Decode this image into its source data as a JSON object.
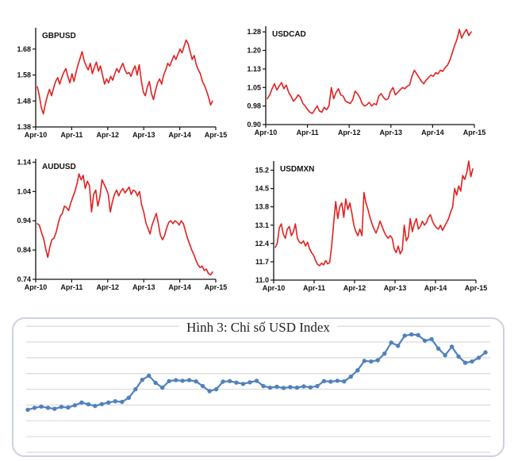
{
  "colors": {
    "line_red": "#e32020",
    "line_blue": "#4f81bd",
    "grid_gray": "#d9d9d9",
    "axis_black": "#111111",
    "box_border": "#ccd3de"
  },
  "chart_data": [
    {
      "id": "gbpusd",
      "type": "line",
      "title": "GBPUSD",
      "x_ticks": [
        "Apr-10",
        "Apr-11",
        "Apr-12",
        "Apr-13",
        "Apr-14",
        "Apr-15"
      ],
      "yticks": [
        1.38,
        1.48,
        1.58,
        1.68
      ],
      "ytick_labels": [
        "1.38",
        "1.48",
        "1.58",
        "1.68"
      ],
      "ylim": [
        1.38,
        1.762
      ],
      "line_color": "#e32020",
      "series": [
        {
          "name": "GBPUSD",
          "values": [
            1.535,
            1.5,
            1.455,
            1.43,
            1.47,
            1.5,
            1.525,
            1.5,
            1.53,
            1.555,
            1.57,
            1.545,
            1.57,
            1.59,
            1.605,
            1.575,
            1.55,
            1.585,
            1.555,
            1.59,
            1.62,
            1.645,
            1.67,
            1.635,
            1.615,
            1.6,
            1.625,
            1.585,
            1.61,
            1.63,
            1.595,
            1.615,
            1.58,
            1.545,
            1.565,
            1.55,
            1.575,
            1.56,
            1.585,
            1.605,
            1.59,
            1.61,
            1.625,
            1.6,
            1.585,
            1.59,
            1.575,
            1.6,
            1.615,
            1.58,
            1.62,
            1.56,
            1.515,
            1.5,
            1.535,
            1.555,
            1.51,
            1.485,
            1.52,
            1.55,
            1.565,
            1.545,
            1.58,
            1.6,
            1.625,
            1.615,
            1.635,
            1.655,
            1.64,
            1.66,
            1.68,
            1.665,
            1.69,
            1.715,
            1.7,
            1.67,
            1.64,
            1.655,
            1.62,
            1.6,
            1.585,
            1.555,
            1.54,
            1.52,
            1.495,
            1.465,
            1.48
          ]
        }
      ]
    },
    {
      "id": "usdcad",
      "type": "line",
      "title": "USDCAD",
      "x_ticks": [
        "Apr-10",
        "Apr-11",
        "Apr-12",
        "Apr-13",
        "Apr-14",
        "Apr-15"
      ],
      "yticks": [
        0.9,
        0.975,
        1.05,
        1.125,
        1.2,
        1.275
      ],
      "ytick_labels": [
        "0.90",
        "0.98",
        "1.05",
        "1.13",
        "1.20",
        "1.28"
      ],
      "ylim": [
        0.9,
        1.298
      ],
      "line_color": "#e32020",
      "series": [
        {
          "name": "USDCAD",
          "values": [
            1.005,
            1.02,
            1.045,
            1.065,
            1.04,
            1.055,
            1.07,
            1.045,
            1.06,
            1.03,
            1.015,
            0.995,
            1.005,
            1.02,
            1.01,
            0.985,
            0.975,
            0.96,
            0.95,
            0.945,
            0.96,
            0.975,
            0.955,
            0.95,
            0.97,
            0.96,
            0.975,
            1.05,
            1.005,
            1.03,
            1.045,
            1.02,
            1.015,
            0.995,
            0.99,
            0.985,
            1.0,
            1.035,
            1.025,
            1.01,
            0.985,
            0.975,
            0.98,
            0.99,
            0.975,
            0.985,
            0.98,
            1.015,
            1.025,
            1.01,
            1.0,
            1.005,
            1.035,
            1.05,
            1.02,
            1.03,
            1.04,
            1.05,
            1.045,
            1.055,
            1.06,
            1.095,
            1.12,
            1.105,
            1.09,
            1.075,
            1.065,
            1.08,
            1.09,
            1.1,
            1.095,
            1.11,
            1.105,
            1.12,
            1.115,
            1.13,
            1.14,
            1.16,
            1.19,
            1.22,
            1.245,
            1.285,
            1.25,
            1.27,
            1.285,
            1.26,
            1.275
          ]
        }
      ]
    },
    {
      "id": "audusd",
      "type": "line",
      "title": "AUDUSD",
      "x_ticks": [
        "Apr-10",
        "Apr-11",
        "Apr-12",
        "Apr-13",
        "Apr-14",
        "Apr-15"
      ],
      "yticks": [
        0.74,
        0.84,
        0.94,
        1.04,
        1.14
      ],
      "ytick_labels": [
        "0.74",
        "0.84",
        "0.94",
        "1.04",
        "1.14"
      ],
      "ylim": [
        0.74,
        1.152
      ],
      "line_color": "#e32020",
      "series": [
        {
          "name": "AUDUSD",
          "values": [
            0.93,
            0.925,
            0.9,
            0.88,
            0.845,
            0.815,
            0.85,
            0.875,
            0.88,
            0.9,
            0.93,
            0.955,
            0.965,
            0.99,
            0.985,
            0.975,
            1.0,
            1.02,
            1.04,
            1.065,
            1.1,
            1.08,
            1.095,
            1.05,
            1.075,
            1.06,
            0.97,
            1.03,
            1.045,
            0.99,
            1.02,
            1.08,
            1.065,
            1.05,
            1.03,
            0.97,
            1.005,
            1.03,
            1.045,
            1.025,
            1.04,
            1.05,
            1.035,
            1.045,
            1.055,
            1.03,
            1.045,
            1.04,
            1.025,
            1.04,
            0.995,
            0.97,
            0.935,
            0.915,
            0.895,
            0.925,
            0.945,
            0.965,
            0.93,
            0.89,
            0.875,
            0.89,
            0.915,
            0.935,
            0.94,
            0.93,
            0.94,
            0.935,
            0.925,
            0.94,
            0.93,
            0.905,
            0.88,
            0.86,
            0.84,
            0.825,
            0.805,
            0.79,
            0.78,
            0.785,
            0.77,
            0.775,
            0.76,
            0.755,
            0.765
          ]
        }
      ]
    },
    {
      "id": "usdmxn",
      "type": "line",
      "title": "USDMXN",
      "x_ticks": [
        "Apr-10",
        "Apr-11",
        "Apr-12",
        "Apr-13",
        "Apr-14",
        "Apr-15"
      ],
      "yticks": [
        11.0,
        11.7,
        12.4,
        13.1,
        13.8,
        14.5,
        15.2
      ],
      "ytick_labels": [
        "11.0",
        "11.7",
        "12.4",
        "13.1",
        "13.8",
        "14.5",
        "15.2"
      ],
      "ylim": [
        11.0,
        15.55
      ],
      "line_color": "#e32020",
      "series": [
        {
          "name": "USDMXN",
          "values": [
            12.25,
            12.4,
            13.0,
            13.15,
            12.75,
            12.6,
            12.95,
            13.05,
            12.7,
            12.85,
            13.15,
            12.6,
            12.45,
            12.4,
            12.5,
            12.3,
            12.45,
            12.2,
            12.05,
            11.95,
            11.75,
            11.6,
            11.55,
            11.65,
            11.58,
            11.75,
            11.62,
            11.68,
            12.3,
            13.2,
            14.0,
            13.35,
            13.8,
            13.95,
            13.4,
            14.1,
            13.7,
            13.95,
            13.55,
            13.1,
            12.85,
            12.7,
            12.95,
            12.7,
            14.35,
            13.95,
            13.7,
            13.4,
            13.15,
            12.95,
            12.8,
            13.0,
            13.25,
            13.05,
            12.85,
            12.7,
            12.6,
            12.7,
            12.6,
            12.2,
            12.05,
            12.3,
            12.0,
            12.15,
            13.1,
            12.5,
            12.65,
            13.35,
            12.85,
            13.15,
            13.35,
            12.95,
            13.05,
            13.25,
            13.1,
            13.2,
            13.4,
            13.5,
            13.25,
            13.1,
            13.0,
            12.95,
            13.1,
            12.9,
            13.05,
            13.2,
            13.35,
            13.6,
            13.8,
            14.5,
            14.25,
            14.6,
            14.4,
            15.0,
            14.85,
            15.1,
            15.55,
            14.95,
            15.25
          ]
        }
      ]
    },
    {
      "id": "usdindex",
      "type": "line",
      "markers": true,
      "title": "Hình 3: Chỉ số USD Index",
      "x_ticks": [],
      "yticks": [
        65,
        70,
        75,
        80,
        85,
        90,
        95,
        100,
        105
      ],
      "ytick_labels": [],
      "ylim": [
        64,
        107.3
      ],
      "grid": true,
      "legend": "none",
      "line_color": "#4f81bd",
      "series": [
        {
          "name": "USD Index",
          "values": [
            78.5,
            79.1,
            79.5,
            79.1,
            78.8,
            79.4,
            79.2,
            79.9,
            80.8,
            80.2,
            79.7,
            80.3,
            80.8,
            81.2,
            81.0,
            82.3,
            85.0,
            88.0,
            89.3,
            87.0,
            85.5,
            87.6,
            87.9,
            87.7,
            87.9,
            87.5,
            86.0,
            84.4,
            85.0,
            87.4,
            87.6,
            87.1,
            86.7,
            87.2,
            87.7,
            86.0,
            85.5,
            85.8,
            85.4,
            85.7,
            85.5,
            85.9,
            85.6,
            86.0,
            87.6,
            87.4,
            87.7,
            87.5,
            89.0,
            91.0,
            94.0,
            93.8,
            94.2,
            96.3,
            99.8,
            98.8,
            102.0,
            102.4,
            102.2,
            100.4,
            100.9,
            97.9,
            95.8,
            98.5,
            95.4,
            93.4,
            93.8,
            95.0,
            96.7
          ]
        }
      ]
    }
  ]
}
